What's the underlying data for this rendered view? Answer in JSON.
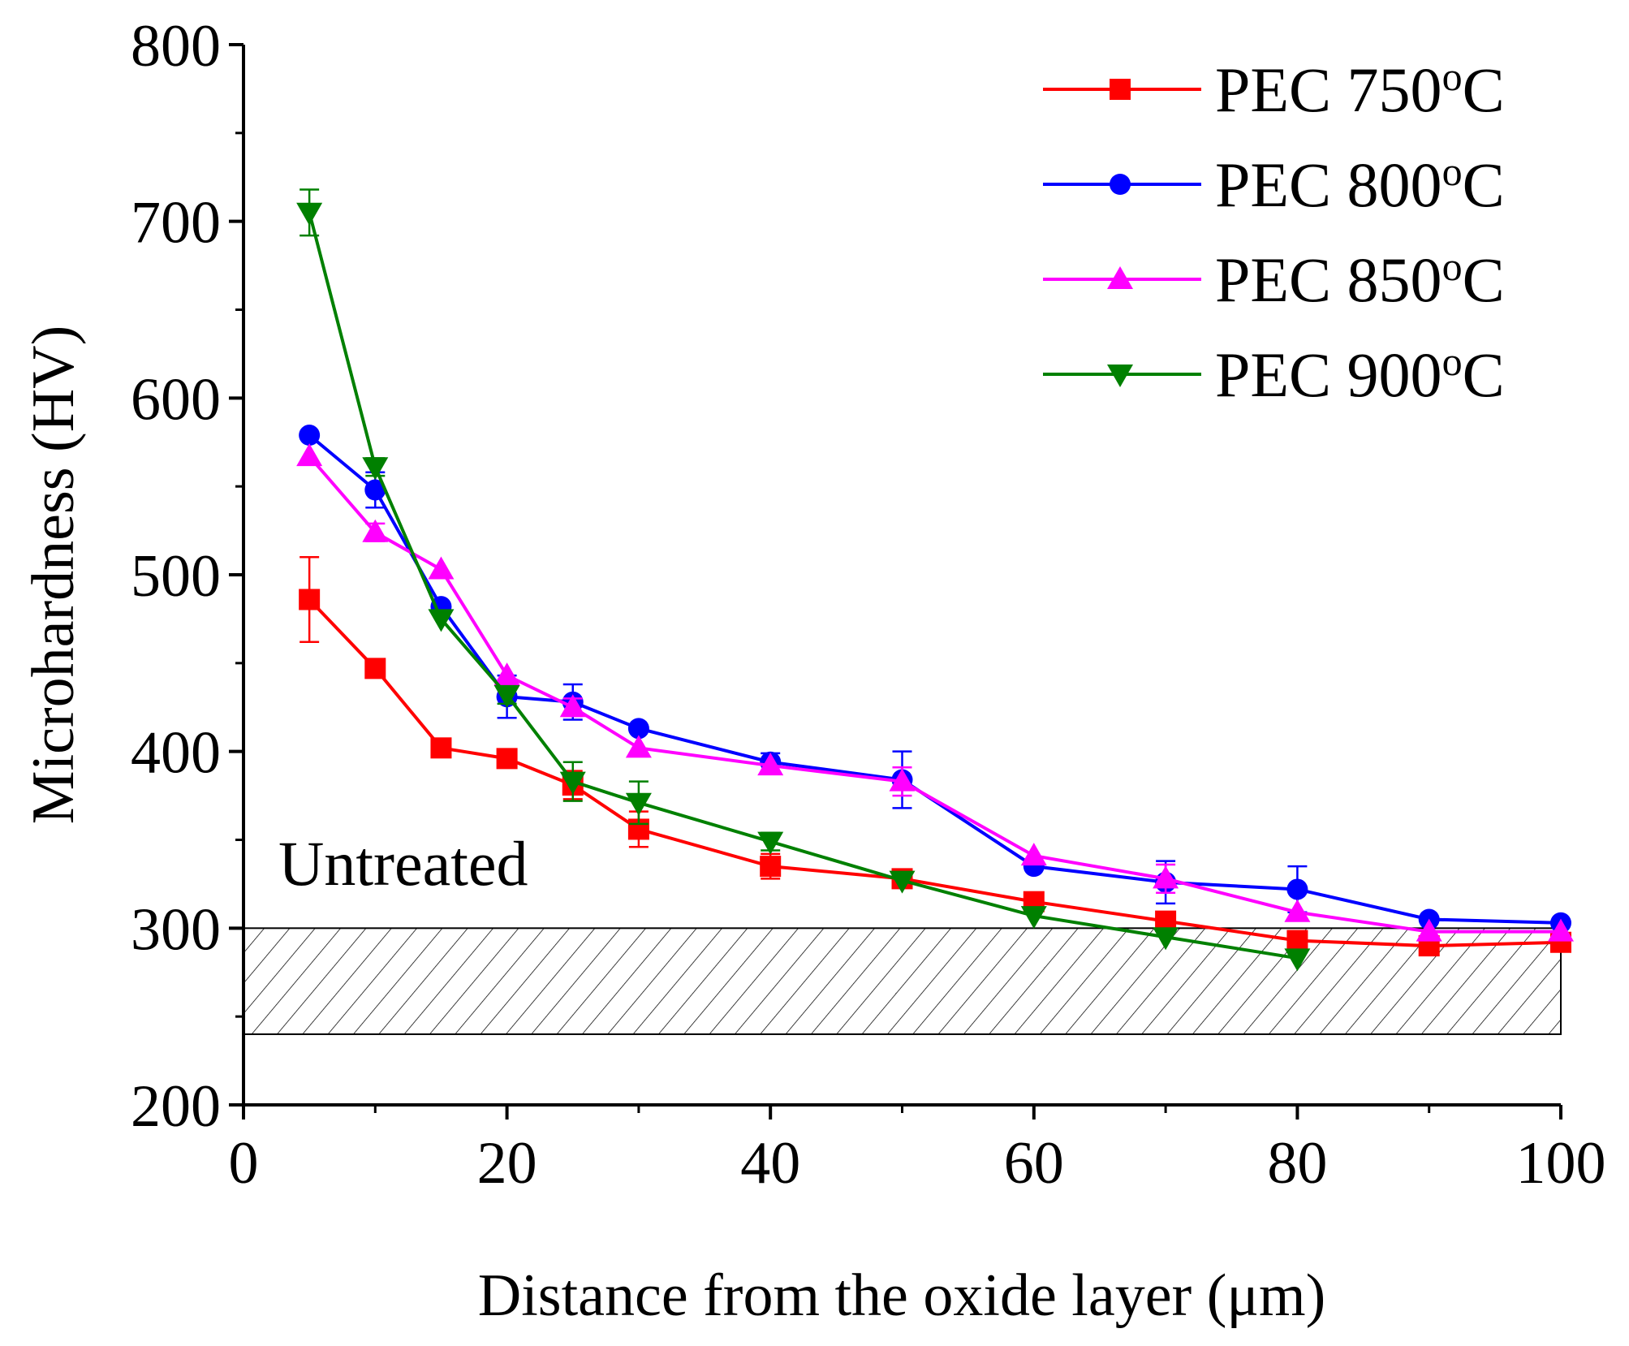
{
  "chart_data": {
    "type": "line",
    "xlabel": "Distance from the oxide layer (μm)",
    "ylabel": "Microhardness (HV)",
    "xlim": [
      0,
      100
    ],
    "ylim": [
      200,
      800
    ],
    "xticks": [
      0,
      20,
      40,
      60,
      80,
      100
    ],
    "yticks": [
      200,
      300,
      400,
      500,
      600,
      700,
      800
    ],
    "grid": false,
    "legend_position": "top-right",
    "annotation": {
      "text": "Untreated",
      "band": [
        240,
        300
      ]
    },
    "series": [
      {
        "name": "PEC 750",
        "sup": "o",
        "unit": "C",
        "color": "#ff0000",
        "marker": "square",
        "x": [
          5,
          10,
          15,
          20,
          25,
          30,
          40,
          50,
          60,
          70,
          80,
          90,
          100
        ],
        "y": [
          486,
          447,
          402,
          396,
          381,
          356,
          335,
          328,
          315,
          304,
          293,
          290,
          292
        ],
        "err": [
          24,
          3,
          3,
          3,
          8,
          10,
          7,
          4,
          3,
          4,
          4,
          3,
          3
        ]
      },
      {
        "name": "PEC 800",
        "sup": "o",
        "unit": "C",
        "color": "#0000ff",
        "marker": "circle",
        "x": [
          5,
          10,
          15,
          20,
          25,
          30,
          40,
          50,
          60,
          70,
          80,
          90,
          100
        ],
        "y": [
          579,
          548,
          482,
          431,
          428,
          413,
          394,
          384,
          335,
          326,
          322,
          305,
          303
        ],
        "err": [
          3,
          10,
          4,
          12,
          10,
          4,
          5,
          16,
          4,
          12,
          13,
          4,
          3
        ]
      },
      {
        "name": "PEC 850",
        "sup": "o",
        "unit": "C",
        "color": "#ff00ff",
        "marker": "triangle-up",
        "x": [
          5,
          10,
          15,
          20,
          25,
          30,
          40,
          50,
          60,
          70,
          80,
          90,
          100
        ],
        "y": [
          567,
          524,
          503,
          443,
          425,
          402,
          392,
          383,
          341,
          328,
          309,
          298,
          298
        ],
        "err": [
          3,
          5,
          3,
          3,
          5,
          3,
          3,
          8,
          3,
          8,
          4,
          3,
          3
        ]
      },
      {
        "name": "PEC 900",
        "sup": "o",
        "unit": "C",
        "color": "#008000",
        "marker": "triangle-down",
        "x": [
          5,
          10,
          15,
          20,
          25,
          30,
          40,
          50,
          60,
          70,
          80
        ],
        "y": [
          705,
          561,
          475,
          432,
          383,
          371,
          349,
          327,
          307,
          295,
          283
        ],
        "err": [
          13,
          5,
          3,
          5,
          11,
          12,
          5,
          4,
          3,
          4,
          3
        ]
      }
    ]
  }
}
